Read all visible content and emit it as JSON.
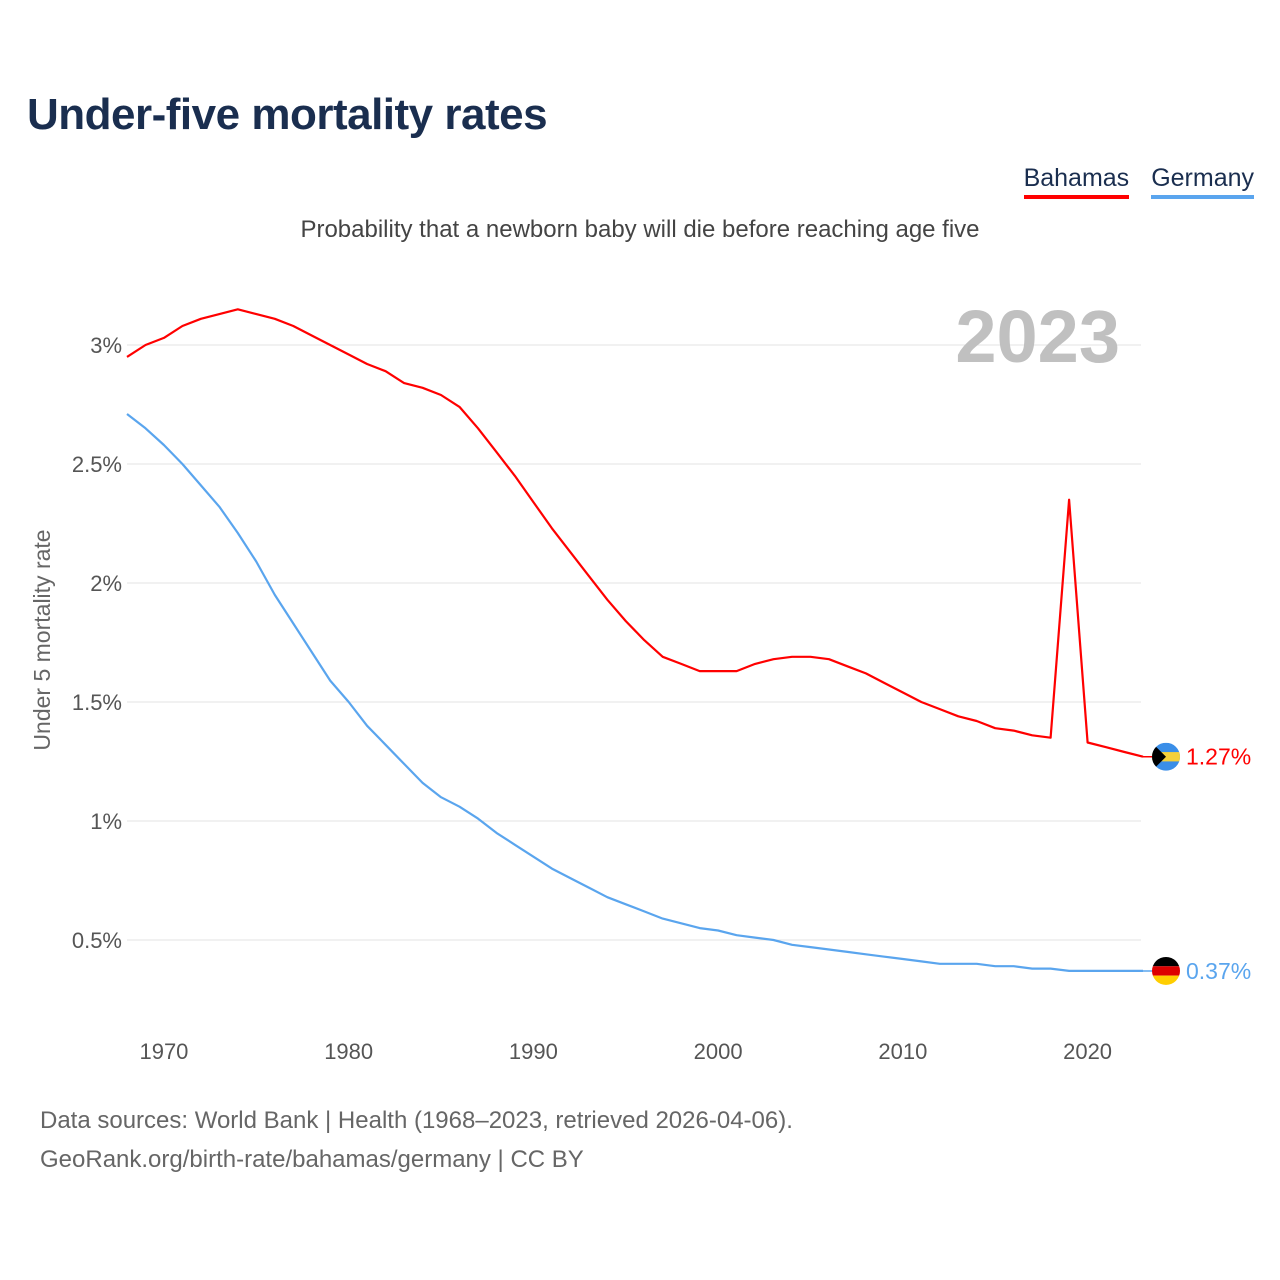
{
  "title": "Under-five mortality rates",
  "subtitle": "Probability that a newborn baby will die before reaching age five",
  "legend": [
    {
      "label": "Bahamas",
      "color": "#ff0000"
    },
    {
      "label": "Germany",
      "color": "#5aa5ee"
    }
  ],
  "footer": {
    "line1": "Data sources: World Bank | Health (1968–2023, retrieved 2026-04-06).",
    "line2": "GeoRank.org/birth-rate/bahamas/germany | CC BY"
  },
  "chart_data": {
    "type": "line",
    "title": "Under-five mortality rates",
    "ylabel": "Under 5 mortality rate",
    "xlabel": "",
    "year_label": "2023",
    "xlim": [
      1968,
      2023
    ],
    "ylim": [
      0,
      3.3
    ],
    "x_ticks": [
      1970,
      1980,
      1990,
      2000,
      2010,
      2020
    ],
    "y_ticks": [
      0.5,
      1,
      1.5,
      2,
      2.5,
      3
    ],
    "y_tick_labels": [
      "0.5%",
      "1%",
      "1.5%",
      "2%",
      "2.5%",
      "3%"
    ],
    "grid": true,
    "x": [
      1968,
      1969,
      1970,
      1971,
      1972,
      1973,
      1974,
      1975,
      1976,
      1977,
      1978,
      1979,
      1980,
      1981,
      1982,
      1983,
      1984,
      1985,
      1986,
      1987,
      1988,
      1989,
      1990,
      1991,
      1992,
      1993,
      1994,
      1995,
      1996,
      1997,
      1998,
      1999,
      2000,
      2001,
      2002,
      2003,
      2004,
      2005,
      2006,
      2007,
      2008,
      2009,
      2010,
      2011,
      2012,
      2013,
      2014,
      2015,
      2016,
      2017,
      2018,
      2019,
      2020,
      2021,
      2022,
      2023
    ],
    "series": [
      {
        "name": "Bahamas",
        "color": "#ff0000",
        "end_label": "1.27%",
        "flag": "bahamas-flag",
        "values": [
          2.95,
          3.0,
          3.03,
          3.08,
          3.11,
          3.13,
          3.15,
          3.13,
          3.11,
          3.08,
          3.04,
          3.0,
          2.96,
          2.92,
          2.89,
          2.84,
          2.82,
          2.79,
          2.74,
          2.65,
          2.55,
          2.45,
          2.34,
          2.23,
          2.13,
          2.03,
          1.93,
          1.84,
          1.76,
          1.69,
          1.66,
          1.63,
          1.63,
          1.63,
          1.66,
          1.68,
          1.69,
          1.69,
          1.68,
          1.65,
          1.62,
          1.58,
          1.54,
          1.5,
          1.47,
          1.44,
          1.42,
          1.39,
          1.38,
          1.36,
          1.35,
          2.35,
          1.33,
          1.31,
          1.29,
          1.27
        ]
      },
      {
        "name": "Germany",
        "color": "#5aa5ee",
        "end_label": "0.37%",
        "flag": "germany-flag",
        "values": [
          2.71,
          2.65,
          2.58,
          2.5,
          2.41,
          2.32,
          2.21,
          2.09,
          1.95,
          1.83,
          1.71,
          1.59,
          1.5,
          1.4,
          1.32,
          1.24,
          1.16,
          1.1,
          1.06,
          1.01,
          0.95,
          0.9,
          0.85,
          0.8,
          0.76,
          0.72,
          0.68,
          0.65,
          0.62,
          0.59,
          0.57,
          0.55,
          0.54,
          0.52,
          0.51,
          0.5,
          0.48,
          0.47,
          0.46,
          0.45,
          0.44,
          0.43,
          0.42,
          0.41,
          0.4,
          0.4,
          0.4,
          0.39,
          0.39,
          0.38,
          0.38,
          0.37,
          0.37,
          0.37,
          0.37,
          0.37
        ]
      }
    ]
  }
}
